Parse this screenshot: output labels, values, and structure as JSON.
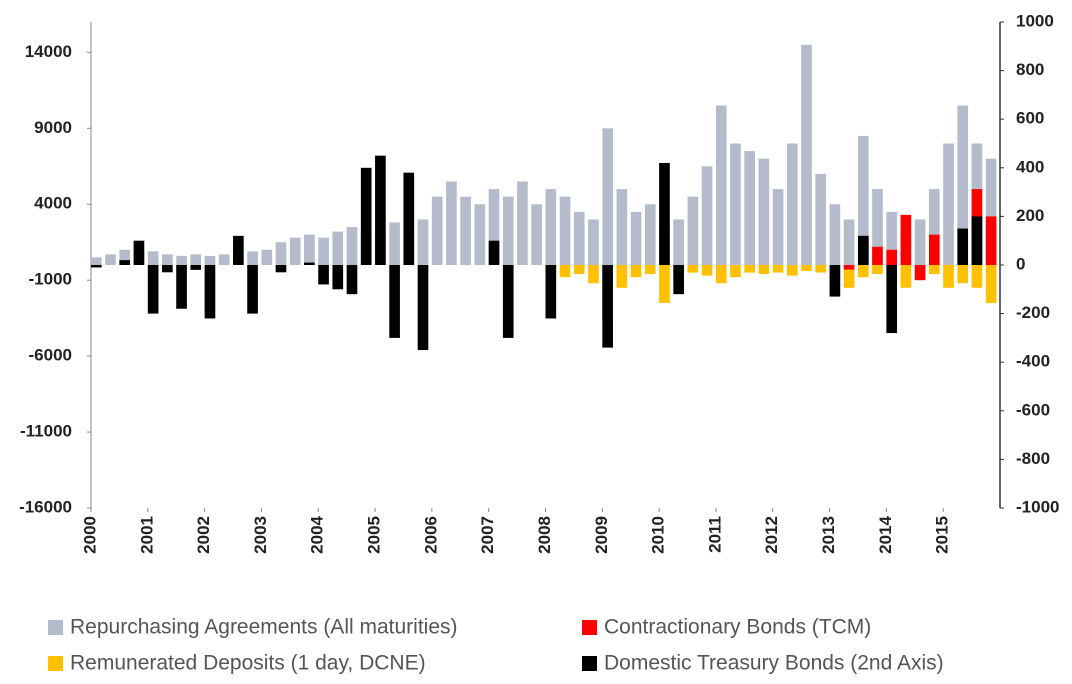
{
  "chart_data": {
    "type": "bar",
    "x": [
      2000,
      2000.25,
      2000.5,
      2000.75,
      2001,
      2001.25,
      2001.5,
      2001.75,
      2002,
      2002.25,
      2002.5,
      2002.75,
      2003,
      2003.25,
      2003.5,
      2003.75,
      2004,
      2004.25,
      2004.5,
      2004.75,
      2005,
      2005.25,
      2005.5,
      2005.75,
      2006,
      2006.25,
      2006.5,
      2006.75,
      2007,
      2007.25,
      2007.5,
      2007.75,
      2008,
      2008.25,
      2008.5,
      2008.75,
      2009,
      2009.25,
      2009.5,
      2009.75,
      2010,
      2010.25,
      2010.5,
      2010.75,
      2011,
      2011.25,
      2011.5,
      2011.75,
      2012,
      2012.25,
      2012.5,
      2012.75,
      2013,
      2013.25,
      2013.5,
      2013.75,
      2014,
      2014.25,
      2014.5,
      2014.75,
      2015,
      2015.25,
      2015.5,
      2015.75
    ],
    "xlim": [
      2000,
      2016
    ],
    "xticks": [
      2000,
      2001,
      2002,
      2003,
      2004,
      2005,
      2006,
      2007,
      2008,
      2009,
      2010,
      2011,
      2012,
      2013,
      2014,
      2015
    ],
    "ylim": [
      -16000,
      16000
    ],
    "yticks": [
      -16000,
      -11000,
      -6000,
      -1000,
      4000,
      9000,
      14000
    ],
    "y2lim": [
      -1000,
      1000
    ],
    "y2ticks": [
      -1000,
      -800,
      -600,
      -400,
      -200,
      0,
      200,
      400,
      600,
      800,
      1000
    ],
    "series": [
      {
        "name": "Repurchasing Agreements (All maturities)",
        "color": "#b4bccb",
        "values": [
          500,
          700,
          1000,
          800,
          900,
          700,
          600,
          700,
          600,
          700,
          800,
          900,
          1000,
          1500,
          1800,
          2000,
          1800,
          2200,
          2500,
          2000,
          2500,
          2800,
          2000,
          3000,
          4500,
          5500,
          4500,
          4000,
          5000,
          4500,
          5500,
          4000,
          5000,
          4500,
          3500,
          3000,
          9000,
          5000,
          3500,
          4000,
          2500,
          3000,
          4500,
          6500,
          10500,
          8000,
          7500,
          7000,
          5000,
          8000,
          14500,
          6000,
          4000,
          3000,
          8500,
          5000,
          3500,
          2000,
          3000,
          5000,
          8000,
          10500,
          8000,
          7000
        ]
      },
      {
        "name": "Remunerated Deposits (1 day, DCNE)",
        "color": "#ffc000",
        "values": [
          0,
          0,
          0,
          0,
          0,
          0,
          0,
          0,
          0,
          0,
          0,
          0,
          0,
          0,
          0,
          0,
          0,
          0,
          0,
          0,
          0,
          0,
          0,
          0,
          0,
          0,
          0,
          0,
          0,
          0,
          0,
          0,
          -500,
          -800,
          -600,
          -1200,
          -3500,
          -1500,
          -800,
          -600,
          -2500,
          -800,
          -500,
          -700,
          -1200,
          -800,
          -500,
          -600,
          -500,
          -700,
          -400,
          -500,
          -1000,
          -1500,
          -800,
          -600,
          -1200,
          -1500,
          -800,
          -600,
          -1500,
          -1200,
          -1500,
          -2500
        ]
      },
      {
        "name": "Contractionary Bonds (TCM)",
        "color": "#ff0000",
        "values": [
          0,
          0,
          0,
          0,
          0,
          0,
          0,
          0,
          0,
          0,
          0,
          0,
          0,
          0,
          0,
          0,
          0,
          0,
          0,
          0,
          0,
          0,
          0,
          0,
          0,
          0,
          0,
          0,
          0,
          0,
          0,
          0,
          0,
          0,
          0,
          0,
          0,
          0,
          0,
          0,
          0,
          0,
          0,
          0,
          0,
          0,
          0,
          0,
          0,
          0,
          0,
          0,
          0,
          -300,
          1800,
          1200,
          1000,
          3300,
          -1000,
          2000,
          0,
          0,
          5000,
          3200
        ]
      },
      {
        "name": "Domestic Treasury Bonds (2nd Axis)",
        "color": "#000000",
        "axis": "y2",
        "values": [
          -10,
          0,
          20,
          100,
          -200,
          -30,
          -180,
          -20,
          -220,
          0,
          120,
          -200,
          0,
          -30,
          0,
          10,
          -80,
          -100,
          -120,
          400,
          450,
          -300,
          380,
          -350,
          0,
          0,
          0,
          0,
          100,
          -300,
          0,
          0,
          -220,
          0,
          0,
          0,
          -340,
          0,
          0,
          0,
          420,
          -120,
          0,
          0,
          0,
          0,
          0,
          0,
          0,
          0,
          0,
          0,
          -130,
          0,
          120,
          0,
          -280,
          0,
          0,
          0,
          0,
          150,
          200,
          0
        ]
      }
    ]
  }
}
